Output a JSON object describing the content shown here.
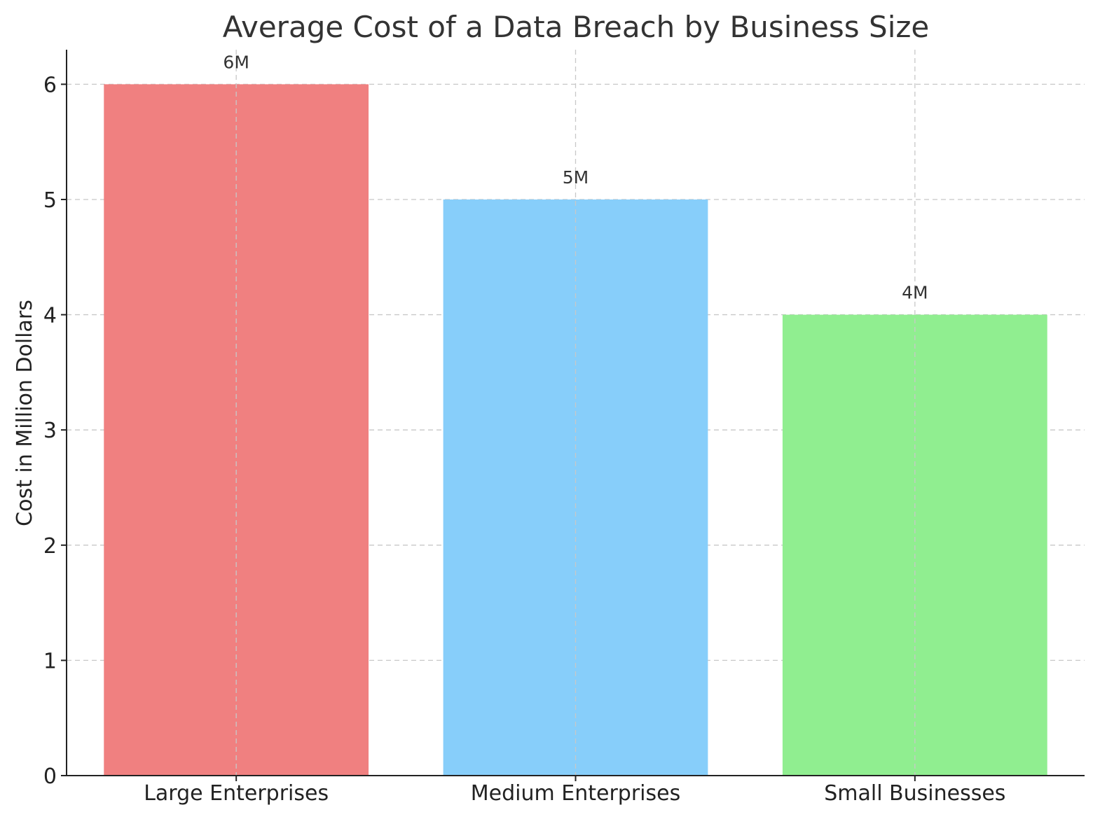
{
  "chart_data": {
    "type": "bar",
    "title": "Average Cost of a Data Breach by Business Size",
    "xlabel": "",
    "ylabel": "Cost in Million Dollars",
    "categories": [
      "Large Enterprises",
      "Medium Enterprises",
      "Small Businesses"
    ],
    "values": [
      6,
      5,
      4
    ],
    "data_labels": [
      "6M",
      "5M",
      "4M"
    ],
    "colors": [
      "#f08080",
      "#87cefa",
      "#90ee90"
    ],
    "ylim": [
      0,
      6.3
    ],
    "yticks": [
      0,
      1,
      2,
      3,
      4,
      5,
      6
    ],
    "grid": true,
    "legend": "none"
  }
}
